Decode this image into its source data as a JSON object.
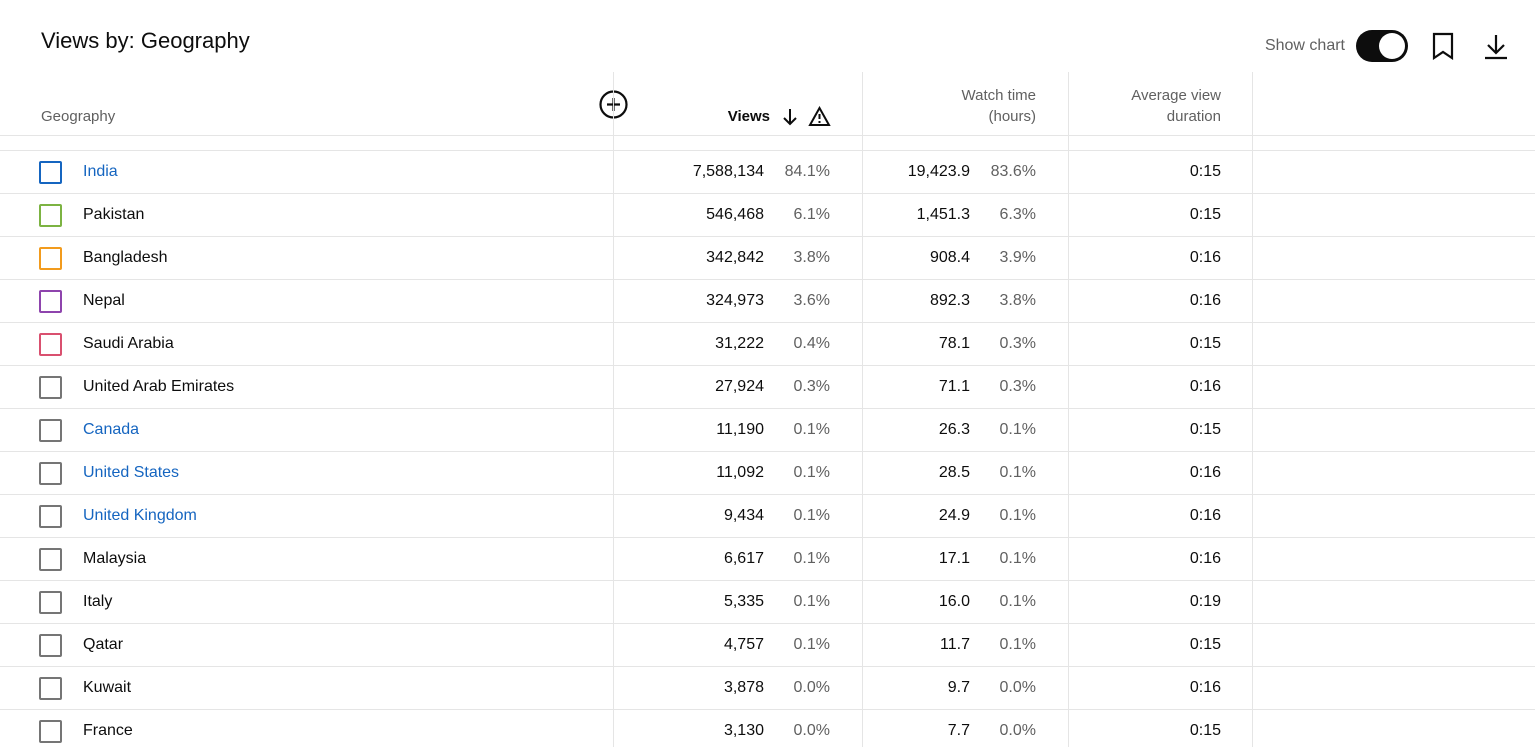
{
  "header": {
    "title": "Views by: Geography",
    "show_chart": "Show chart"
  },
  "table": {
    "columns": {
      "geography": "Geography",
      "views": "Views",
      "watch_time": [
        "Watch time",
        "(hours)"
      ],
      "avg_duration": [
        "Average view",
        "duration"
      ]
    },
    "rows": [
      {
        "name": "India",
        "link": true,
        "color": "#1565c0",
        "views": "7,588,134",
        "views_pct": "84.1%",
        "watch": "19,423.9",
        "watch_pct": "83.6%",
        "avg": "0:15"
      },
      {
        "name": "Pakistan",
        "link": false,
        "color": "#7cb342",
        "views": "546,468",
        "views_pct": "6.1%",
        "watch": "1,451.3",
        "watch_pct": "6.3%",
        "avg": "0:15"
      },
      {
        "name": "Bangladesh",
        "link": false,
        "color": "#f29b1d",
        "views": "342,842",
        "views_pct": "3.8%",
        "watch": "908.4",
        "watch_pct": "3.9%",
        "avg": "0:16"
      },
      {
        "name": "Nepal",
        "link": false,
        "color": "#8e44ad",
        "views": "324,973",
        "views_pct": "3.6%",
        "watch": "892.3",
        "watch_pct": "3.8%",
        "avg": "0:16"
      },
      {
        "name": "Saudi Arabia",
        "link": false,
        "color": "#d9506f",
        "views": "31,222",
        "views_pct": "0.4%",
        "watch": "78.1",
        "watch_pct": "0.3%",
        "avg": "0:15"
      },
      {
        "name": "United Arab Emirates",
        "link": false,
        "color": "#757575",
        "views": "27,924",
        "views_pct": "0.3%",
        "watch": "71.1",
        "watch_pct": "0.3%",
        "avg": "0:16"
      },
      {
        "name": "Canada",
        "link": true,
        "color": "#757575",
        "views": "11,190",
        "views_pct": "0.1%",
        "watch": "26.3",
        "watch_pct": "0.1%",
        "avg": "0:15"
      },
      {
        "name": "United States",
        "link": true,
        "color": "#757575",
        "views": "11,092",
        "views_pct": "0.1%",
        "watch": "28.5",
        "watch_pct": "0.1%",
        "avg": "0:16"
      },
      {
        "name": "United Kingdom",
        "link": true,
        "color": "#757575",
        "views": "9,434",
        "views_pct": "0.1%",
        "watch": "24.9",
        "watch_pct": "0.1%",
        "avg": "0:16"
      },
      {
        "name": "Malaysia",
        "link": false,
        "color": "#757575",
        "views": "6,617",
        "views_pct": "0.1%",
        "watch": "17.1",
        "watch_pct": "0.1%",
        "avg": "0:16"
      },
      {
        "name": "Italy",
        "link": false,
        "color": "#757575",
        "views": "5,335",
        "views_pct": "0.1%",
        "watch": "16.0",
        "watch_pct": "0.1%",
        "avg": "0:19"
      },
      {
        "name": "Qatar",
        "link": false,
        "color": "#757575",
        "views": "4,757",
        "views_pct": "0.1%",
        "watch": "11.7",
        "watch_pct": "0.1%",
        "avg": "0:15"
      },
      {
        "name": "Kuwait",
        "link": false,
        "color": "#757575",
        "views": "3,878",
        "views_pct": "0.0%",
        "watch": "9.7",
        "watch_pct": "0.0%",
        "avg": "0:16"
      },
      {
        "name": "France",
        "link": false,
        "color": "#757575",
        "views": "3,130",
        "views_pct": "0.0%",
        "watch": "7.7",
        "watch_pct": "0.0%",
        "avg": "0:15"
      }
    ]
  }
}
